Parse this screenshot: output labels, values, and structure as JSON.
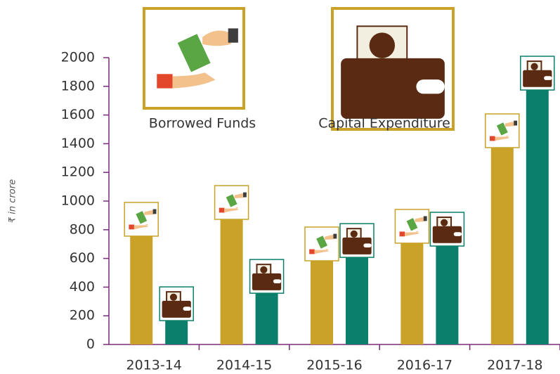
{
  "chart_data": {
    "type": "bar",
    "y_label": "₹ in crore",
    "categories": [
      "2013-14",
      "2014-15",
      "2015-16",
      "2016-17",
      "2017-18"
    ],
    "series": [
      {
        "name": "Borrowed Funds",
        "color": "#c9a227",
        "values": [
          873,
          990,
          701,
          824,
          1490
        ]
      },
      {
        "name": "Capital Expenditure",
        "color": "#0b7f6b",
        "values": [
          284,
          475,
          725,
          804,
          1892
        ]
      }
    ],
    "ylim": [
      0,
      2000
    ],
    "yticks": [
      0,
      200,
      400,
      600,
      800,
      1000,
      1200,
      1400,
      1600,
      1800,
      2000
    ]
  }
}
